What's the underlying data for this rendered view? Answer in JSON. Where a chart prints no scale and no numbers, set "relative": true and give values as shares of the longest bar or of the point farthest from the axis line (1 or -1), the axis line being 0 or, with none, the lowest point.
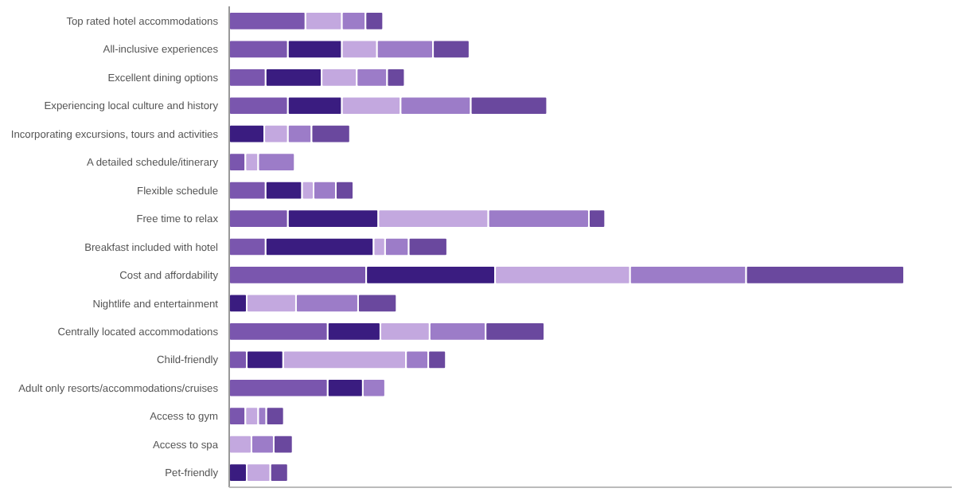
{
  "chart_data": {
    "type": "bar",
    "orientation": "horizontal",
    "stacked": true,
    "relative": true,
    "categories": [
      "Top rated hotel accommodations",
      "All-inclusive experiences",
      "Excellent dining options",
      "Experiencing local culture and history",
      "Incorporating excursions, tours and activities",
      "A detailed schedule/itinerary",
      "Flexible schedule",
      "Free time to relax",
      "Breakfast included with hotel",
      "Cost and affordability",
      "Nightlife and entertainment",
      "Centrally located accommodations",
      "Child-friendly",
      "Adult only resorts/accommodations/cruises",
      "Access to gym",
      "Access to spa",
      "Pet-friendly"
    ],
    "series": [
      {
        "color": "#7a56ae",
        "values": [
          0.113,
          0.087,
          0.054,
          0.087,
          0,
          0.024,
          0.054,
          0.087,
          0.054,
          0.203,
          0,
          0.146,
          0.026,
          0.146,
          0.024,
          0,
          0
        ]
      },
      {
        "color": "#3a1c80",
        "values": [
          0,
          0.08,
          0.083,
          0.08,
          0.052,
          0,
          0.054,
          0.134,
          0.16,
          0.191,
          0.026,
          0.078,
          0.054,
          0.052,
          0,
          0,
          0.026
        ]
      },
      {
        "color": "#c3a8df",
        "values": [
          0.054,
          0.052,
          0.052,
          0.087,
          0.035,
          0.019,
          0.017,
          0.163,
          0.017,
          0.2,
          0.073,
          0.073,
          0.182,
          0,
          0.019,
          0.033,
          0.035
        ]
      },
      {
        "color": "#9c7cc8",
        "values": [
          0.035,
          0.083,
          0.045,
          0.104,
          0.035,
          0.054,
          0.033,
          0.149,
          0.035,
          0.172,
          0.092,
          0.083,
          0.033,
          0.033,
          0.012,
          0.033,
          0
        ]
      },
      {
        "color": "#6a489e",
        "values": [
          0.026,
          0.054,
          0.026,
          0.113,
          0.057,
          0,
          0.026,
          0.024,
          0.057,
          0.234,
          0.057,
          0.087,
          0.026,
          0,
          0.026,
          0.028,
          0.026
        ]
      }
    ]
  }
}
